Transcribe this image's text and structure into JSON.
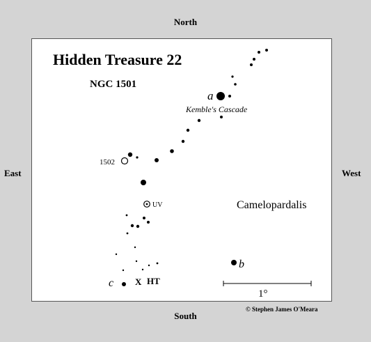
{
  "compass": {
    "north": "North",
    "south": "South",
    "east": "East",
    "west": "West"
  },
  "chart": {
    "title": "Hidden Treasure 22",
    "object": "NGC 1501",
    "constellation": "Camelopardalis",
    "asterism_label": "Kemble's Cascade",
    "star_a_label": "a",
    "star_b_label": "b",
    "star_c_label": "c",
    "ngc1502_label": "1502",
    "uv_label": "UV",
    "target_label": "HT",
    "target_marker": "X",
    "scale_label": "1°"
  },
  "credit": "© Stephen James O'Meara"
}
